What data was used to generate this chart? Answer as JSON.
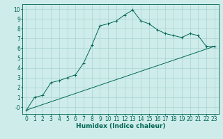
{
  "xlabel": "Humidex (Indice chaleur)",
  "background_color": "#ceecea",
  "grid_color": "#a8d5d0",
  "line_color": "#006655",
  "xlim": [
    -0.5,
    23.5
  ],
  "ylim": [
    -0.7,
    10.5
  ],
  "xticks": [
    0,
    1,
    2,
    3,
    4,
    5,
    6,
    7,
    8,
    9,
    10,
    11,
    12,
    13,
    14,
    15,
    16,
    17,
    18,
    19,
    20,
    21,
    22,
    23
  ],
  "yticks": [
    0,
    1,
    2,
    3,
    4,
    5,
    6,
    7,
    8,
    9,
    10
  ],
  "ytick_labels": [
    "-0",
    "1",
    "2",
    "3",
    "4",
    "5",
    "6",
    "7",
    "8",
    "9",
    "10"
  ],
  "humidex_curve_x": [
    0,
    1,
    2,
    3,
    4,
    5,
    6,
    7,
    8,
    9,
    10,
    11,
    12,
    13,
    14,
    15,
    16,
    17,
    18,
    19,
    20,
    21,
    22,
    23
  ],
  "humidex_curve_y": [
    -0.3,
    1.0,
    1.2,
    2.5,
    2.7,
    3.0,
    3.3,
    4.5,
    6.3,
    8.3,
    8.5,
    8.8,
    9.4,
    9.9,
    8.8,
    8.5,
    7.9,
    7.5,
    7.3,
    7.1,
    7.5,
    7.3,
    6.2,
    6.2
  ],
  "straight_line_x": [
    0,
    23
  ],
  "straight_line_y": [
    -0.3,
    6.2
  ],
  "xlabel_fontsize": 6.5,
  "tick_fontsize": 5.5
}
